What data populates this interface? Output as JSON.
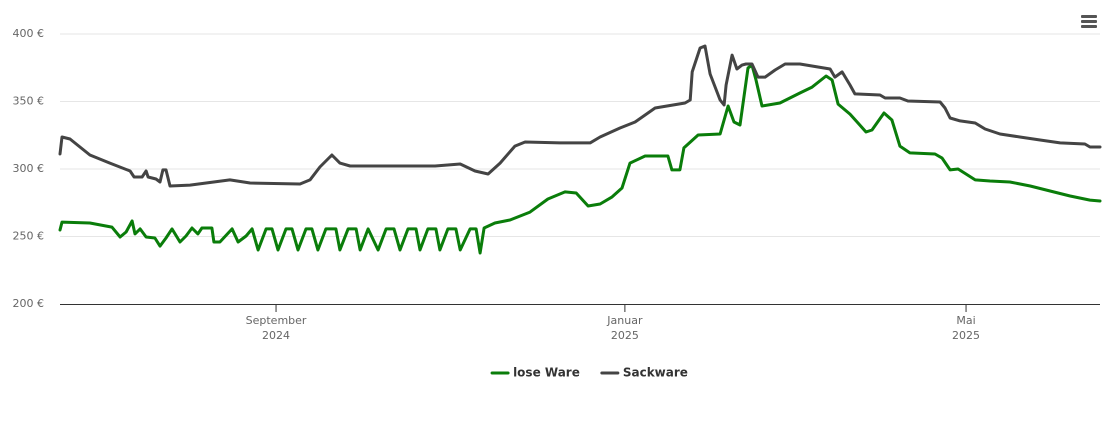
{
  "chart_data": {
    "type": "line",
    "xlim": [
      0,
      364.9
    ],
    "xticks": [
      {
        "value": 75.8,
        "label": "September",
        "sublabel": "2024"
      },
      {
        "value": 198.2,
        "label": "Januar",
        "sublabel": "2025"
      },
      {
        "value": 317.9,
        "label": "Mai",
        "sublabel": "2025"
      }
    ],
    "ylim": [
      200,
      400
    ],
    "yticks": [
      {
        "value": 200,
        "label": "200 €"
      },
      {
        "value": 250,
        "label": "250 €"
      },
      {
        "value": 300,
        "label": "300 €"
      },
      {
        "value": 350,
        "label": "350 €"
      },
      {
        "value": 400,
        "label": "400 €"
      }
    ],
    "grid": true,
    "series": [
      {
        "name": "lose Ware",
        "color": "#0a7d0a",
        "x": [
          0,
          0.7,
          10.5,
          18.2,
          21.1,
          23.2,
          25.3,
          26.3,
          28.1,
          30.2,
          33.3,
          35.1,
          37.2,
          39.3,
          42.1,
          44.2,
          46.3,
          48.4,
          49.8,
          53.3,
          54,
          56.1,
          60.4,
          62.5,
          65.3,
          67.4,
          69.5,
          72.3,
          74.4,
          76.5,
          79.3,
          81.4,
          83.5,
          86.3,
          88.4,
          90.5,
          93.3,
          96.8,
          98.2,
          101.1,
          103.9,
          105.3,
          108.1,
          111.6,
          114.4,
          117.2,
          119.3,
          122.1,
          124.9,
          126.3,
          129.1,
          131.9,
          133.3,
          136.1,
          138.9,
          140.4,
          143.9,
          146,
          147.4,
          148.8,
          152.6,
          157.9,
          164.9,
          171.2,
          177.2,
          181.1,
          185.3,
          189.5,
          193.7,
          197.2,
          200,
          205.3,
          213.3,
          214.7,
          217.5,
          218.9,
          223.9,
          231.6,
          234.4,
          236.5,
          238.6,
          241.4,
          242.8,
          244.2,
          246.3,
          252.6,
          259.6,
          263.9,
          268.8,
          270.9,
          273,
          277.2,
          280,
          282.8,
          284.9,
          289.1,
          291.9,
          294.7,
          298.2,
          307,
          309.5,
          312.3,
          315.1,
          317.9,
          321.1,
          326.3,
          333.3,
          340.4,
          347.4,
          354.4,
          361.4,
          364.9
        ],
        "values": [
          254.8,
          260.7,
          260,
          257,
          249.6,
          253.3,
          261.5,
          251.9,
          255.6,
          249.6,
          248.9,
          242.9,
          248.9,
          255.6,
          245.9,
          250.4,
          256.3,
          251.9,
          256.3,
          256.3,
          245.9,
          245.9,
          255.6,
          245.9,
          250.4,
          255.6,
          240,
          255.6,
          255.6,
          240,
          255.6,
          255.6,
          240,
          255.6,
          255.6,
          240,
          255.6,
          255.6,
          240,
          255.6,
          255.6,
          240,
          255.6,
          240,
          255.6,
          255.6,
          240,
          255.6,
          255.6,
          240,
          255.6,
          255.6,
          240,
          255.6,
          255.6,
          240,
          255.6,
          255.6,
          237.8,
          256.3,
          260,
          262.2,
          268.1,
          277.8,
          283,
          282.2,
          272.6,
          274.1,
          279.3,
          285.9,
          304.4,
          309.6,
          309.6,
          299.3,
          299.3,
          315.6,
          325.2,
          325.9,
          346.7,
          334.8,
          332.6,
          374.8,
          377,
          365.9,
          346.7,
          348.9,
          356.3,
          360.7,
          368.9,
          365.9,
          348.1,
          340.7,
          334.1,
          327.4,
          328.9,
          341.5,
          336.3,
          317,
          311.9,
          311.1,
          308.1,
          299.3,
          300,
          296.3,
          291.9,
          291.1,
          290.4,
          287.4,
          283.7,
          280,
          277,
          276.3
        ]
      },
      {
        "name": "Sackware",
        "color": "#444444",
        "x": [
          0,
          0.7,
          3.5,
          10.5,
          17.5,
          24.6,
          26,
          26.7,
          28.8,
          30.2,
          30.9,
          33.7,
          35.1,
          36.1,
          37.2,
          38.6,
          45.6,
          59.6,
          66.7,
          84.2,
          87.7,
          91.2,
          95.4,
          98.2,
          101.8,
          119.3,
          131.6,
          140.4,
          145.6,
          150.2,
          154.4,
          159.6,
          163.2,
          175.4,
          186,
          189.5,
          196.5,
          201.8,
          208.8,
          219.3,
          221.1,
          221.8,
          224.6,
          226.3,
          228.1,
          231.6,
          233,
          233.7,
          235.8,
          237.5,
          239.3,
          240.7,
          242.8,
          244.9,
          247.4,
          250.9,
          254.4,
          259.6,
          270.2,
          271.9,
          274.4,
          277.2,
          278.9,
          287.7,
          289.5,
          294.7,
          297.5,
          308.8,
          310.5,
          312.3,
          315.8,
          321.1,
          324.6,
          329.8,
          336.8,
          343.9,
          350.9,
          359.6,
          361.4,
          364.9
        ],
        "values": [
          311.1,
          323.7,
          322.2,
          310.4,
          304.4,
          298.5,
          294.1,
          294.1,
          294.1,
          298.5,
          294.1,
          292.6,
          290.4,
          299.3,
          299.3,
          287.4,
          288.1,
          291.9,
          289.6,
          288.9,
          291.9,
          301.5,
          310.4,
          304.4,
          302.2,
          302.2,
          302.2,
          303.7,
          298.5,
          296.3,
          304.4,
          317,
          320,
          319.3,
          319.3,
          323.7,
          330.4,
          334.8,
          345.2,
          348.9,
          351.1,
          371.9,
          389.6,
          391.1,
          370.4,
          351.1,
          347.4,
          362.2,
          384.4,
          374.1,
          377,
          377.8,
          377.8,
          368.1,
          368.1,
          373.3,
          377.8,
          377.8,
          374.1,
          368.1,
          371.9,
          362.2,
          355.6,
          354.8,
          352.6,
          352.6,
          350.4,
          349.6,
          345.2,
          337.8,
          335.6,
          334.1,
          329.6,
          325.9,
          323.7,
          321.5,
          319.3,
          318.5,
          316.3,
          316.3
        ]
      }
    ]
  }
}
